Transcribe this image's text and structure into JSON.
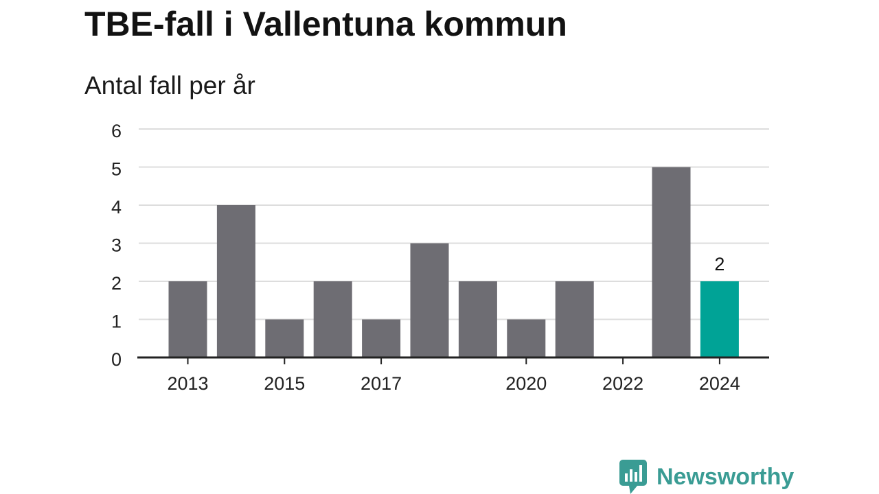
{
  "title": "TBE-fall i Vallentuna kommun",
  "subtitle": "Antal fall per år",
  "brand": {
    "name": "Newsworthy",
    "logo_icon": "newsworthy-logo-icon",
    "color": "#3a9c94"
  },
  "colors": {
    "bar": "#6e6d73",
    "highlight": "#00a396",
    "grid": "#dddddd",
    "axis": "#222222"
  },
  "chart_data": {
    "type": "bar",
    "categories": [
      "2013",
      "2014",
      "2015",
      "2016",
      "2017",
      "2018",
      "2019",
      "2020",
      "2021",
      "2022",
      "2023",
      "2024"
    ],
    "values": [
      2,
      4,
      1,
      2,
      1,
      3,
      2,
      1,
      2,
      0,
      5,
      2
    ],
    "tick_labels": [
      "2013",
      "2015",
      "2017",
      "2020",
      "2022",
      "2024"
    ],
    "yticks": [
      "0",
      "1",
      "2",
      "3",
      "4",
      "5",
      "6"
    ],
    "ylim": [
      0,
      6
    ],
    "highlight_category": "2024",
    "data_labels": [
      {
        "category": "2024",
        "text": "2"
      }
    ],
    "grid": true,
    "title": "TBE-fall i Vallentuna kommun",
    "ylabel": "Antal fall per år",
    "xlabel": ""
  }
}
